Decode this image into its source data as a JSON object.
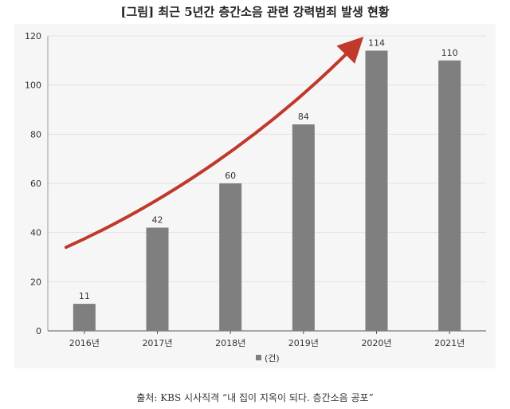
{
  "title": "[그림] 최근 5년간 층간소음 관련 강력범죄 발생 현황",
  "source": "출처: KBS 시사직격 “내 집이 지옥이 되다. 층간소음 공포”",
  "colors": {
    "bar": "#7f7f7f",
    "arrow": "#c0392b",
    "grid": "#e2e2e2",
    "background": "#f6f6f6"
  },
  "chart_data": {
    "type": "bar",
    "categories": [
      "2016년",
      "2017년",
      "2018년",
      "2019년",
      "2020년",
      "2021년"
    ],
    "series": [
      {
        "name": "(건)",
        "values": [
          11,
          42,
          60,
          84,
          114,
          110
        ]
      }
    ],
    "ylim": [
      0,
      120
    ],
    "yticks": [
      0,
      20,
      40,
      60,
      80,
      100,
      120
    ],
    "grid": true,
    "legend": "bottom",
    "annotations": [
      "red upward trend arrow"
    ]
  }
}
